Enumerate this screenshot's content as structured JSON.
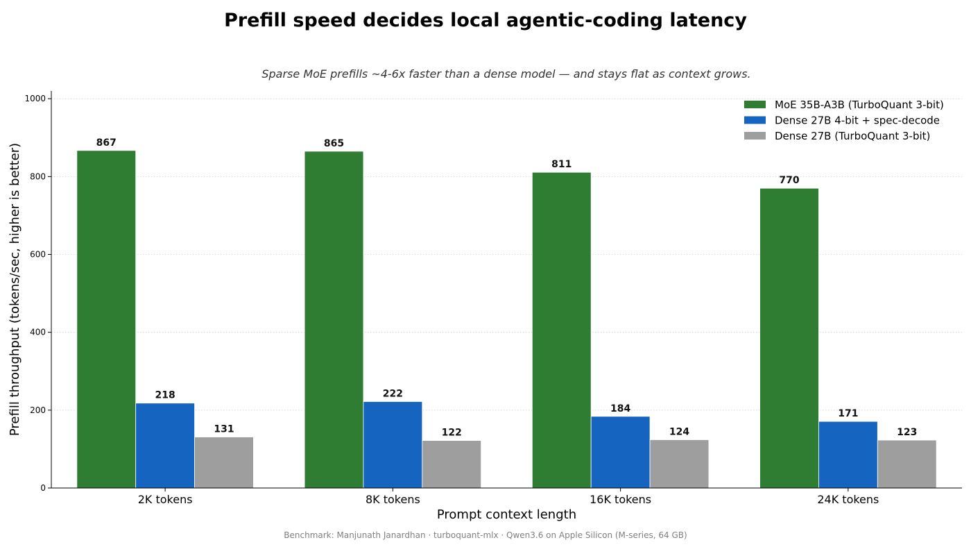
{
  "chart_data": {
    "type": "bar",
    "title": "Prefill speed decides local agentic-coding latency",
    "subtitle": "Sparse MoE prefills ~4-6x faster than a dense model — and stays flat as context grows.",
    "xlabel": "Prompt context length",
    "ylabel": "Prefill throughput (tokens/sec, higher is better)",
    "categories": [
      "2K tokens",
      "8K tokens",
      "16K tokens",
      "24K tokens"
    ],
    "ylim": [
      0,
      1020
    ],
    "yticks": [
      0,
      200,
      400,
      600,
      800,
      1000
    ],
    "grid": "horizontal dotted",
    "legend_position": "top-right",
    "series": [
      {
        "name": "MoE 35B-A3B (TurboQuant 3-bit)",
        "color": "#2e7d32",
        "values": [
          867,
          865,
          811,
          770
        ]
      },
      {
        "name": "Dense 27B 4-bit + spec-decode",
        "color": "#1565c0",
        "values": [
          218,
          222,
          184,
          171
        ]
      },
      {
        "name": "Dense 27B (TurboQuant 3-bit)",
        "color": "#9e9e9e",
        "values": [
          131,
          122,
          124,
          123
        ]
      }
    ],
    "footnote": "Benchmark: Manjunath Janardhan · turboquant-mlx · Qwen3.6 on Apple Silicon (M-series, 64 GB)"
  }
}
